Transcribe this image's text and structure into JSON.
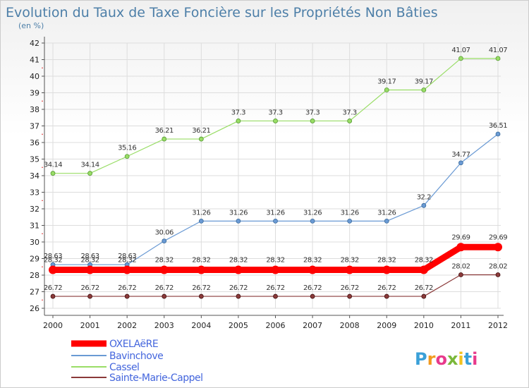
{
  "chart_data": {
    "type": "line",
    "title": "Evolution du Taux de Taxe Foncière sur les Propriétés Non Bâties",
    "unit_label": "(en %)",
    "xlabel": "",
    "ylabel": "",
    "ylim": [
      26,
      42
    ],
    "yticks": [
      26,
      27,
      28,
      29,
      30,
      31,
      32,
      33,
      34,
      35,
      36,
      37,
      38,
      39,
      40,
      41,
      42
    ],
    "categories": [
      "2000",
      "2001",
      "2002",
      "2003",
      "2004",
      "2005",
      "2006",
      "2007",
      "2008",
      "2009",
      "2010",
      "2011",
      "2012"
    ],
    "grid": true,
    "legend_position": "bottom-left",
    "series": [
      {
        "name": "OXELAëRE",
        "color": "#ff0000",
        "values": [
          28.32,
          28.32,
          28.32,
          28.32,
          28.32,
          28.32,
          28.32,
          28.32,
          28.32,
          28.32,
          28.32,
          29.69,
          29.69
        ],
        "labels": [
          "28.32",
          "28.32",
          "28.32",
          "28.32",
          "28.32",
          "28.32",
          "28.32",
          "28.32",
          "28.32",
          "28.32",
          "28.32",
          "29.69",
          "29.69"
        ]
      },
      {
        "name": "Bavinchove",
        "color": "#6a9ad4",
        "values": [
          28.63,
          28.63,
          28.63,
          30.06,
          31.26,
          31.26,
          31.26,
          31.26,
          31.26,
          31.26,
          32.2,
          34.77,
          36.51
        ],
        "labels": [
          "28.63",
          "28.63",
          "28.63",
          "30.06",
          "31.26",
          "31.26",
          "31.26",
          "31.26",
          "31.26",
          "31.26",
          "32.2",
          "34.77",
          "36.51"
        ]
      },
      {
        "name": "Cassel",
        "color": "#99dd66",
        "values": [
          34.14,
          34.14,
          35.16,
          36.21,
          36.21,
          37.3,
          37.3,
          37.3,
          37.3,
          39.17,
          39.17,
          41.07,
          41.07
        ],
        "labels": [
          "34.14",
          "34.14",
          "35.16",
          "36.21",
          "36.21",
          "37.3",
          "37.3",
          "37.3",
          "37.3",
          "39.17",
          "39.17",
          "41.07",
          "41.07"
        ]
      },
      {
        "name": "Sainte-Marie-Cappel",
        "color": "#8b3a3a",
        "values": [
          26.72,
          26.72,
          26.72,
          26.72,
          26.72,
          26.72,
          26.72,
          26.72,
          26.72,
          26.72,
          26.72,
          28.02,
          28.02
        ],
        "labels": [
          "26.72",
          "26.72",
          "26.72",
          "26.72",
          "26.72",
          "26.72",
          "26.72",
          "26.72",
          "26.72",
          "26.72",
          "26.72",
          "28.02",
          "28.02"
        ]
      }
    ]
  },
  "logo": {
    "text": "Proxiti"
  }
}
